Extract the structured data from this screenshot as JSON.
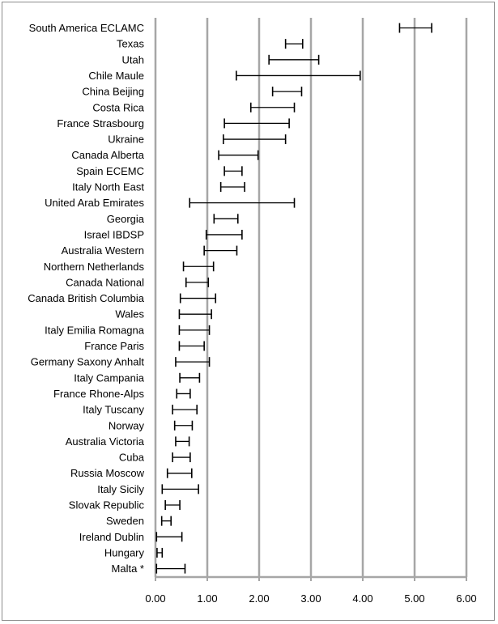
{
  "chart_data": {
    "type": "errorbar",
    "orientation": "horizontal",
    "xlim": [
      0,
      6
    ],
    "x_ticks": [
      "0.00",
      "1.00",
      "2.00",
      "3.00",
      "4.00",
      "5.00",
      "6.00"
    ],
    "grid": "vertical",
    "title": "",
    "xlabel": "",
    "ylabel": "",
    "categories": [
      "South America ECLAMC",
      "Texas",
      "Utah",
      "Chile Maule",
      "China Beijing",
      "Costa Rica",
      "France Strasbourg",
      "Ukraine",
      "Canada Alberta",
      "Spain ECEMC",
      "Italy North East",
      "United Arab Emirates",
      "Georgia",
      "Israel IBDSP",
      "Australia Western",
      "Northern Netherlands",
      "Canada National",
      "Canada British Columbia",
      "Wales",
      "Italy Emilia  Romagna",
      "France Paris",
      "Germany Saxony Anhalt",
      "Italy Campania",
      "France Rhone-Alps",
      "Italy Tuscany",
      "Norway",
      "Australia Victoria",
      "Cuba",
      "Russia Moscow",
      "Italy Sicily",
      "Slovak Republic",
      "Sweden",
      "Ireland Dublin",
      "Hungary",
      "Malta *"
    ],
    "intervals": [
      [
        4.71,
        5.33
      ],
      [
        2.51,
        2.84
      ],
      [
        2.19,
        3.15
      ],
      [
        1.56,
        3.95
      ],
      [
        2.26,
        2.82
      ],
      [
        1.84,
        2.68
      ],
      [
        1.33,
        2.58
      ],
      [
        1.31,
        2.51
      ],
      [
        1.22,
        1.98
      ],
      [
        1.33,
        1.67
      ],
      [
        1.26,
        1.72
      ],
      [
        0.66,
        2.68
      ],
      [
        1.13,
        1.59
      ],
      [
        0.98,
        1.67
      ],
      [
        0.94,
        1.57
      ],
      [
        0.54,
        1.12
      ],
      [
        0.59,
        1.02
      ],
      [
        0.48,
        1.16
      ],
      [
        0.46,
        1.08
      ],
      [
        0.46,
        1.04
      ],
      [
        0.46,
        0.94
      ],
      [
        0.39,
        1.04
      ],
      [
        0.47,
        0.85
      ],
      [
        0.41,
        0.67
      ],
      [
        0.33,
        0.8
      ],
      [
        0.37,
        0.71
      ],
      [
        0.39,
        0.65
      ],
      [
        0.33,
        0.67
      ],
      [
        0.23,
        0.7
      ],
      [
        0.13,
        0.83
      ],
      [
        0.19,
        0.47
      ],
      [
        0.12,
        0.3
      ],
      [
        0.02,
        0.51
      ],
      [
        0.03,
        0.13
      ],
      [
        0.02,
        0.57
      ]
    ],
    "colors": {
      "grid": "#a6a6a6",
      "bar": "#000000",
      "axis": "#a6a6a6",
      "frame": "#8c8c8c"
    }
  }
}
